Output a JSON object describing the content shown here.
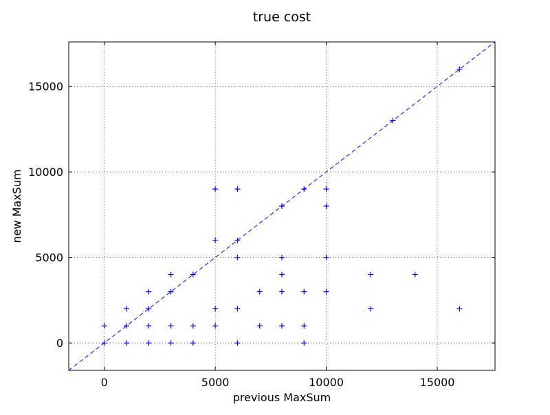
{
  "chart_data": {
    "type": "scatter",
    "title": "true cost",
    "x_label": "previous MaxSum",
    "y_label": "new MaxSum",
    "xlim": [
      -1600,
      17600
    ],
    "ylim": [
      -1600,
      17600
    ],
    "xticks": [
      0,
      5000,
      10000,
      15000
    ],
    "yticks": [
      0,
      5000,
      10000,
      15000
    ],
    "grid": true,
    "diagonal": true,
    "color": "#0000ff",
    "x": [
      0,
      0,
      1000,
      1000,
      1000,
      2000,
      2000,
      2000,
      2000,
      3000,
      3000,
      3000,
      3000,
      4000,
      4000,
      4000,
      5000,
      5000,
      5000,
      5000,
      6000,
      6000,
      6000,
      6000,
      6000,
      7000,
      7000,
      8000,
      8000,
      8000,
      8000,
      8000,
      9000,
      9000,
      9000,
      9000,
      10000,
      10000,
      10000,
      10000,
      12000,
      12000,
      13000,
      14000,
      16000,
      16000
    ],
    "values": [
      0,
      1000,
      0,
      1000,
      2000,
      0,
      1000,
      2000,
      3000,
      0,
      1000,
      3000,
      4000,
      0,
      1000,
      4000,
      1000,
      2000,
      6000,
      9000,
      0,
      2000,
      5000,
      6000,
      9000,
      1000,
      3000,
      1000,
      3000,
      4000,
      5000,
      8000,
      0,
      1000,
      3000,
      9000,
      3000,
      5000,
      8000,
      9000,
      2000,
      4000,
      13000,
      4000,
      2000,
      16000
    ]
  }
}
